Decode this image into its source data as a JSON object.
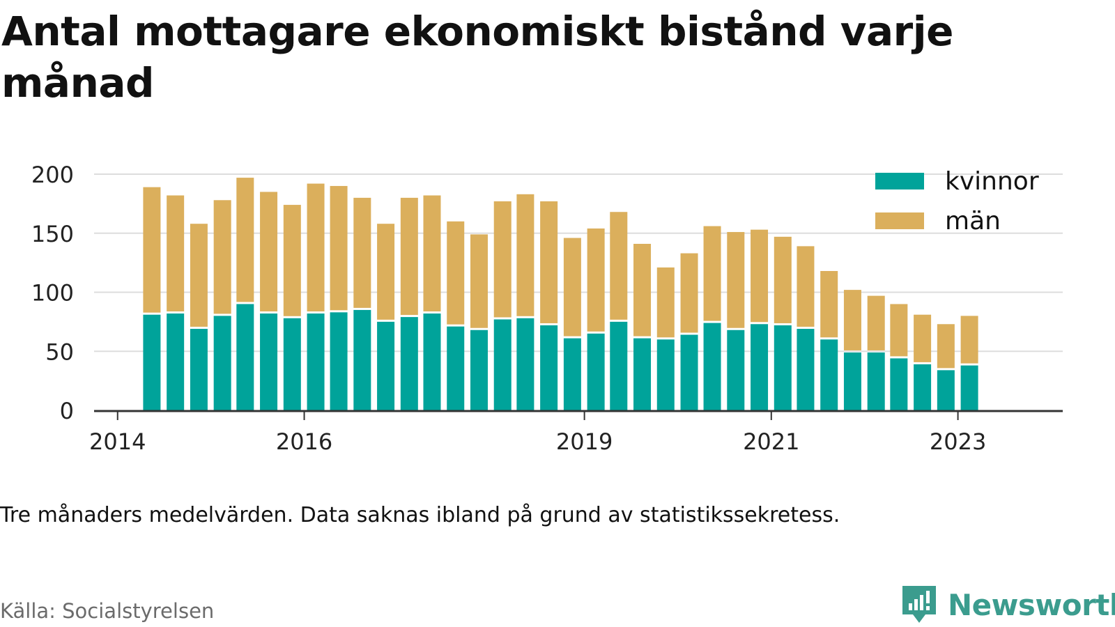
{
  "title": "Antal mottagare ekonomiskt bistånd varje månad",
  "note": "Tre månaders medelvärden. Data saknas ibland på grund av statistikssekretess.",
  "source": "Källa: Socialstyrelsen",
  "brand": "Newsworthy",
  "colors": {
    "kvinnor": "#00a39a",
    "man": "#dbaf5c",
    "brand": "#3b9c8e",
    "grid": "#dddddd",
    "axis": "#333333"
  },
  "chart_data": {
    "type": "bar",
    "stacked": true,
    "title": "Antal mottagare ekonomiskt bistånd varje månad",
    "ylim": [
      0,
      200
    ],
    "yticks": [
      0,
      50,
      100,
      150,
      200
    ],
    "xticks": [
      {
        "label": "2014",
        "x": "2014-01-01"
      },
      {
        "label": "2016",
        "x": "2016-01-01"
      },
      {
        "label": "2019",
        "x": "2019-01-01"
      },
      {
        "label": "2021",
        "x": "2021-01-01"
      },
      {
        "label": "2023",
        "x": "2023-01-01"
      }
    ],
    "grid": true,
    "legend_position": "top-right",
    "x": [
      "2014-05",
      "2014-08",
      "2014-11",
      "2015-02",
      "2015-05",
      "2015-08",
      "2015-11",
      "2016-02",
      "2016-05",
      "2016-08",
      "2016-11",
      "2017-02",
      "2017-05",
      "2017-08",
      "2017-11",
      "2018-02",
      "2018-05",
      "2018-08",
      "2018-11",
      "2019-02",
      "2019-05",
      "2019-08",
      "2019-11",
      "2020-02",
      "2020-05",
      "2020-08",
      "2020-11",
      "2021-02",
      "2021-05",
      "2021-08",
      "2021-11",
      "2022-02",
      "2022-05",
      "2022-08",
      "2022-11",
      "2023-02"
    ],
    "series": [
      {
        "name": "kvinnor",
        "values": [
          81,
          82,
          69,
          80,
          90,
          82,
          78,
          82,
          83,
          85,
          75,
          79,
          82,
          71,
          68,
          77,
          78,
          72,
          61,
          65,
          75,
          61,
          60,
          64,
          74,
          68,
          73,
          72,
          69,
          60,
          49,
          49,
          44,
          39,
          34,
          38
        ]
      },
      {
        "name": "män",
        "values": [
          108,
          100,
          89,
          98,
          107,
          103,
          96,
          110,
          107,
          95,
          83,
          101,
          100,
          89,
          81,
          100,
          105,
          105,
          85,
          89,
          93,
          80,
          61,
          69,
          82,
          83,
          80,
          75,
          70,
          58,
          53,
          48,
          46,
          42,
          39,
          42
        ]
      }
    ]
  }
}
